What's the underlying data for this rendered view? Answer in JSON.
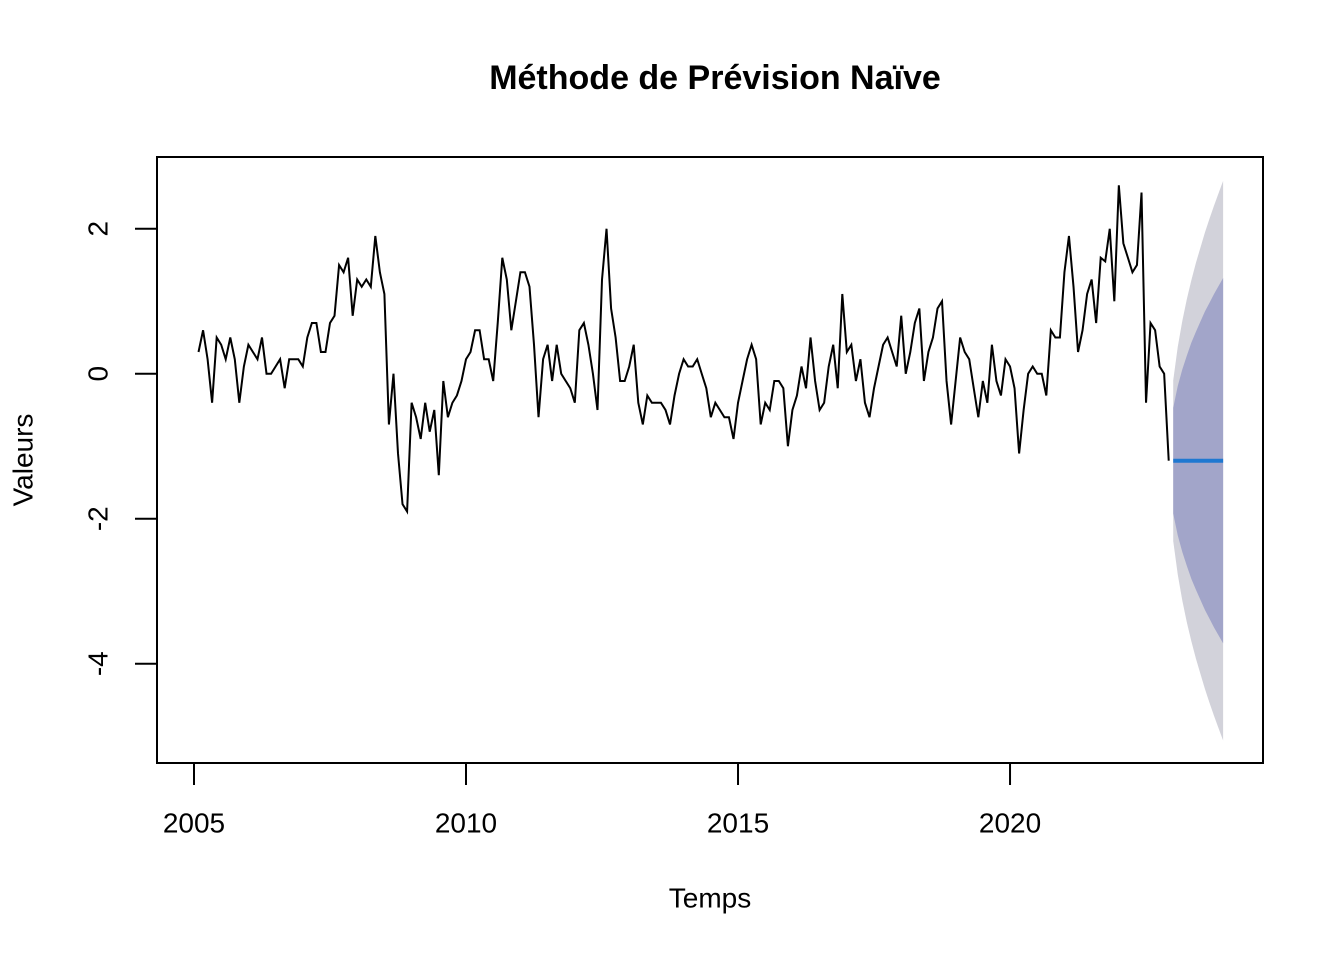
{
  "chart_data": {
    "type": "line",
    "title": "Méthode de Prévision Naïve",
    "xlabel": "Temps",
    "ylabel": "Valeurs",
    "xlim": [
      2004.32,
      2024.65
    ],
    "ylim": [
      -5.37,
      2.99
    ],
    "xticks": [
      2005,
      2010,
      2015,
      2020
    ],
    "yticks": [
      -4,
      -2,
      0,
      2
    ],
    "color": "#000000",
    "x": [
      2005.083,
      2005.167,
      2005.25,
      2005.333,
      2005.417,
      2005.5,
      2005.583,
      2005.667,
      2005.75,
      2005.833,
      2005.917,
      2006,
      2006.083,
      2006.167,
      2006.25,
      2006.333,
      2006.417,
      2006.5,
      2006.583,
      2006.667,
      2006.75,
      2006.833,
      2006.917,
      2007,
      2007.083,
      2007.167,
      2007.25,
      2007.333,
      2007.417,
      2007.5,
      2007.583,
      2007.667,
      2007.75,
      2007.833,
      2007.917,
      2008,
      2008.083,
      2008.167,
      2008.25,
      2008.333,
      2008.417,
      2008.5,
      2008.583,
      2008.667,
      2008.75,
      2008.833,
      2008.917,
      2009,
      2009.083,
      2009.167,
      2009.25,
      2009.333,
      2009.417,
      2009.5,
      2009.583,
      2009.667,
      2009.75,
      2009.833,
      2009.917,
      2010,
      2010.083,
      2010.167,
      2010.25,
      2010.333,
      2010.417,
      2010.5,
      2010.583,
      2010.667,
      2010.75,
      2010.833,
      2010.917,
      2011,
      2011.083,
      2011.167,
      2011.25,
      2011.333,
      2011.417,
      2011.5,
      2011.583,
      2011.667,
      2011.75,
      2011.833,
      2011.917,
      2012,
      2012.083,
      2012.167,
      2012.25,
      2012.333,
      2012.417,
      2012.5,
      2012.583,
      2012.667,
      2012.75,
      2012.833,
      2012.917,
      2013,
      2013.083,
      2013.167,
      2013.25,
      2013.333,
      2013.417,
      2013.5,
      2013.583,
      2013.667,
      2013.75,
      2013.833,
      2013.917,
      2014,
      2014.083,
      2014.167,
      2014.25,
      2014.333,
      2014.417,
      2014.5,
      2014.583,
      2014.667,
      2014.75,
      2014.833,
      2014.917,
      2015,
      2015.083,
      2015.167,
      2015.25,
      2015.333,
      2015.417,
      2015.5,
      2015.583,
      2015.667,
      2015.75,
      2015.833,
      2015.917,
      2016,
      2016.083,
      2016.167,
      2016.25,
      2016.333,
      2016.417,
      2016.5,
      2016.583,
      2016.667,
      2016.75,
      2016.833,
      2016.917,
      2017,
      2017.083,
      2017.167,
      2017.25,
      2017.333,
      2017.417,
      2017.5,
      2017.583,
      2017.667,
      2017.75,
      2017.833,
      2017.917,
      2018,
      2018.083,
      2018.167,
      2018.25,
      2018.333,
      2018.417,
      2018.5,
      2018.583,
      2018.667,
      2018.75,
      2018.833,
      2018.917,
      2019,
      2019.083,
      2019.167,
      2019.25,
      2019.333,
      2019.417,
      2019.5,
      2019.583,
      2019.667,
      2019.75,
      2019.833,
      2019.917,
      2020,
      2020.083,
      2020.167,
      2020.25,
      2020.333,
      2020.417,
      2020.5,
      2020.583,
      2020.667,
      2020.75,
      2020.833,
      2020.917,
      2021,
      2021.083,
      2021.167,
      2021.25,
      2021.333,
      2021.417,
      2021.5,
      2021.583,
      2021.667,
      2021.75,
      2021.833,
      2021.917,
      2022,
      2022.083,
      2022.167,
      2022.25,
      2022.333,
      2022.417,
      2022.5,
      2022.583,
      2022.667,
      2022.75,
      2022.833,
      2022.917
    ],
    "values": [
      0.3,
      0.6,
      0.2,
      -0.4,
      0.5,
      0.4,
      0.2,
      0.5,
      0.2,
      -0.4,
      0.1,
      0.4,
      0.3,
      0.2,
      0.5,
      0,
      0,
      0.1,
      0.2,
      -0.2,
      0.2,
      0.2,
      0.2,
      0.1,
      0.5,
      0.7,
      0.7,
      0.3,
      0.3,
      0.7,
      0.8,
      1.5,
      1.4,
      1.6,
      0.8,
      1.3,
      1.2,
      1.3,
      1.2,
      1.9,
      1.4,
      1.1,
      -0.7,
      0,
      -1.1,
      -1.8,
      -1.9,
      -0.4,
      -0.6,
      -0.9,
      -0.4,
      -0.8,
      -0.5,
      -1.4,
      -0.1,
      -0.6,
      -0.4,
      -0.3,
      -0.1,
      0.2,
      0.3,
      0.6,
      0.6,
      0.2,
      0.2,
      -0.1,
      0.7,
      1.6,
      1.3,
      0.6,
      1.0,
      1.4,
      1.4,
      1.2,
      0.4,
      -0.6,
      0.2,
      0.4,
      -0.1,
      0.4,
      0,
      -0.1,
      -0.2,
      -0.4,
      0.6,
      0.7,
      0.4,
      0,
      -0.5,
      1.3,
      2.0,
      0.9,
      0.5,
      -0.1,
      -0.1,
      0.1,
      0.4,
      -0.4,
      -0.7,
      -0.3,
      -0.4,
      -0.4,
      -0.4,
      -0.5,
      -0.7,
      -0.3,
      0,
      0.2,
      0.1,
      0.1,
      0.2,
      0,
      -0.2,
      -0.6,
      -0.4,
      -0.5,
      -0.6,
      -0.6,
      -0.9,
      -0.4,
      -0.1,
      0.2,
      0.4,
      0.2,
      -0.7,
      -0.4,
      -0.5,
      -0.1,
      -0.1,
      -0.2,
      -1.0,
      -0.5,
      -0.3,
      0.1,
      -0.2,
      0.5,
      -0.1,
      -0.5,
      -0.4,
      0.1,
      0.4,
      -0.2,
      1.1,
      0.3,
      0.4,
      -0.1,
      0.2,
      -0.4,
      -0.6,
      -0.2,
      0.1,
      0.4,
      0.5,
      0.3,
      0.1,
      0.8,
      0,
      0.3,
      0.7,
      0.9,
      -0.1,
      0.3,
      0.5,
      0.9,
      1.0,
      -0.1,
      -0.7,
      -0.1,
      0.5,
      0.3,
      0.2,
      -0.2,
      -0.6,
      -0.1,
      -0.4,
      0.4,
      -0.1,
      -0.3,
      0.2,
      0.1,
      -0.2,
      -1.1,
      -0.5,
      0,
      0.1,
      0,
      0,
      -0.3,
      0.6,
      0.5,
      0.5,
      1.4,
      1.9,
      1.2,
      0.3,
      0.6,
      1.1,
      1.3,
      0.7,
      1.6,
      1.55,
      2.0,
      1.0,
      2.6,
      1.8,
      1.6,
      1.4,
      1.5,
      2.5,
      -0.4,
      0.7,
      0.6,
      0.1,
      0,
      -1.2
    ],
    "forecast": {
      "color": "#1f78d1",
      "color80": "#a2a5c9",
      "color95": "#d2d2da",
      "x": [
        2023,
        2023.083,
        2023.167,
        2023.25,
        2023.333,
        2023.417,
        2023.5,
        2023.583,
        2023.667,
        2023.75,
        2023.833,
        2023.917
      ],
      "values": [
        -1.2,
        -1.2,
        -1.2,
        -1.2,
        -1.2,
        -1.2,
        -1.2,
        -1.2,
        -1.2,
        -1.2,
        -1.2,
        -1.2
      ],
      "lower80": [
        -1.93,
        -2.23,
        -2.46,
        -2.65,
        -2.83,
        -2.98,
        -3.12,
        -3.26,
        -3.38,
        -3.5,
        -3.61,
        -3.72
      ],
      "upper80": [
        -0.47,
        -0.17,
        0.06,
        0.25,
        0.43,
        0.58,
        0.72,
        0.86,
        0.98,
        1.1,
        1.21,
        1.32
      ],
      "lower95": [
        -2.31,
        -2.77,
        -3.13,
        -3.43,
        -3.69,
        -3.93,
        -4.14,
        -4.35,
        -4.54,
        -4.72,
        -4.89,
        -5.06
      ],
      "upper95": [
        -0.09,
        0.37,
        0.73,
        1.03,
        1.29,
        1.53,
        1.74,
        1.95,
        2.14,
        2.32,
        2.49,
        2.66
      ]
    }
  }
}
